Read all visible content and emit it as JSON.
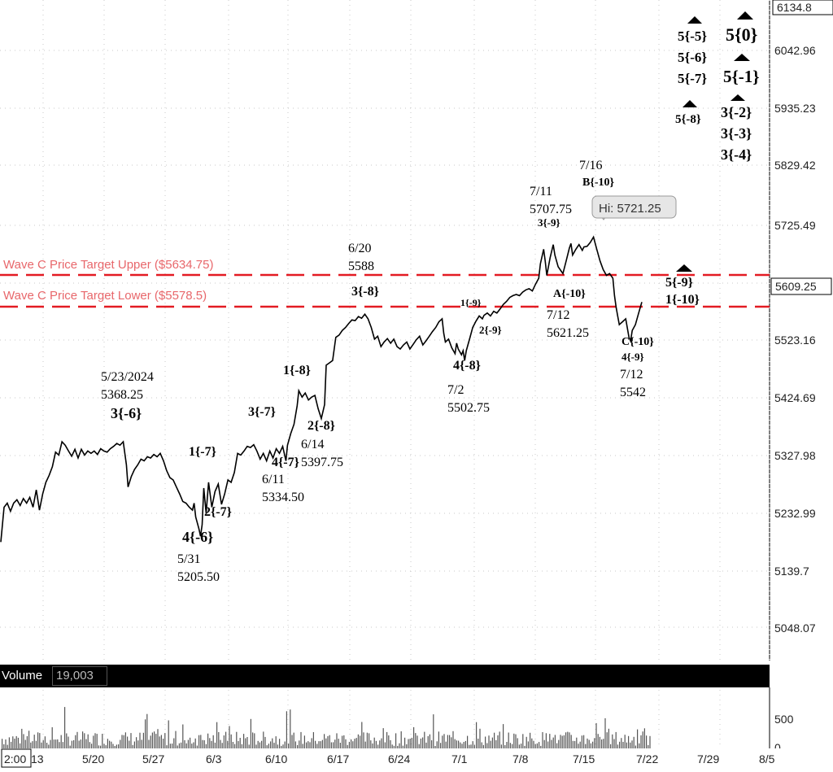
{
  "chart_data": {
    "type": "line",
    "title": "",
    "ylabel": "",
    "xlabel": "",
    "ylim": [
      4990,
      6165
    ],
    "grid": true,
    "y_ticks": [
      "6134.8",
      "6042.96",
      "5935.23",
      "5829.42",
      "5725.49",
      "5523.16",
      "5424.69",
      "5327.98",
      "5232.99",
      "5139.7",
      "5048.07"
    ],
    "current_price_label": "5609.25",
    "hi_label": "Hi: 5721.25",
    "x_ticks": [
      "2:00",
      "13",
      "5/20",
      "5/27",
      "6/3",
      "6/10",
      "6/17",
      "6/24",
      "7/1",
      "7/8",
      "7/15",
      "7/22",
      "7/29",
      "8/5"
    ],
    "series": [
      {
        "values": [
          [
            0,
            5195
          ],
          [
            4,
            5255
          ],
          [
            8,
            5262
          ],
          [
            12,
            5248
          ],
          [
            16,
            5262
          ],
          [
            20,
            5268
          ],
          [
            24,
            5258
          ],
          [
            28,
            5270
          ],
          [
            32,
            5262
          ],
          [
            36,
            5272
          ],
          [
            40,
            5255
          ],
          [
            44,
            5285
          ],
          [
            48,
            5250
          ],
          [
            52,
            5278
          ],
          [
            56,
            5298
          ],
          [
            60,
            5310
          ],
          [
            64,
            5325
          ],
          [
            68,
            5350
          ],
          [
            72,
            5345
          ],
          [
            76,
            5368
          ],
          [
            80,
            5362
          ],
          [
            84,
            5352
          ],
          [
            88,
            5343
          ],
          [
            92,
            5355
          ],
          [
            96,
            5340
          ],
          [
            100,
            5355
          ],
          [
            104,
            5345
          ],
          [
            108,
            5352
          ],
          [
            112,
            5348
          ],
          [
            116,
            5352
          ],
          [
            120,
            5346
          ],
          [
            124,
            5356
          ],
          [
            128,
            5352
          ],
          [
            132,
            5350
          ],
          [
            136,
            5356
          ],
          [
            140,
            5360
          ],
          [
            144,
            5365
          ],
          [
            148,
            5362
          ],
          [
            152,
            5368
          ],
          [
            156,
            5328
          ],
          [
            158,
            5290
          ],
          [
            162,
            5308
          ],
          [
            166,
            5320
          ],
          [
            170,
            5328
          ],
          [
            174,
            5338
          ],
          [
            178,
            5335
          ],
          [
            182,
            5342
          ],
          [
            186,
            5340
          ],
          [
            190,
            5346
          ],
          [
            194,
            5342
          ],
          [
            198,
            5348
          ],
          [
            202,
            5335
          ],
          [
            206,
            5318
          ],
          [
            210,
            5306
          ],
          [
            214,
            5302
          ],
          [
            218,
            5290
          ],
          [
            222,
            5278
          ],
          [
            226,
            5265
          ],
          [
            230,
            5262
          ],
          [
            234,
            5255
          ],
          [
            238,
            5250
          ],
          [
            240,
            5262
          ],
          [
            242,
            5238
          ],
          [
            246,
            5218
          ],
          [
            248,
            5205
          ],
          [
            250,
            5225
          ],
          [
            252,
            5288
          ],
          [
            255,
            5245
          ],
          [
            258,
            5298
          ],
          [
            262,
            5255
          ],
          [
            266,
            5282
          ],
          [
            270,
            5295
          ],
          [
            274,
            5260
          ],
          [
            278,
            5278
          ],
          [
            282,
            5302
          ],
          [
            286,
            5298
          ],
          [
            290,
            5315
          ],
          [
            294,
            5348
          ],
          [
            298,
            5345
          ],
          [
            302,
            5352
          ],
          [
            306,
            5360
          ],
          [
            310,
            5358
          ],
          [
            314,
            5363
          ],
          [
            318,
            5352
          ],
          [
            322,
            5338
          ],
          [
            326,
            5348
          ],
          [
            330,
            5335
          ],
          [
            334,
            5352
          ],
          [
            338,
            5340
          ],
          [
            342,
            5356
          ],
          [
            346,
            5348
          ],
          [
            350,
            5360
          ],
          [
            354,
            5335
          ],
          [
            356,
            5362
          ],
          [
            360,
            5382
          ],
          [
            364,
            5398
          ],
          [
            368,
            5430
          ],
          [
            370,
            5456
          ],
          [
            374,
            5445
          ],
          [
            378,
            5452
          ],
          [
            382,
            5440
          ],
          [
            386,
            5445
          ],
          [
            390,
            5448
          ],
          [
            394,
            5425
          ],
          [
            398,
            5408
          ],
          [
            402,
            5432
          ],
          [
            404,
            5500
          ],
          [
            408,
            5504
          ],
          [
            412,
            5508
          ],
          [
            416,
            5548
          ],
          [
            420,
            5552
          ],
          [
            424,
            5560
          ],
          [
            428,
            5565
          ],
          [
            432,
            5572
          ],
          [
            436,
            5578
          ],
          [
            440,
            5577
          ],
          [
            444,
            5584
          ],
          [
            448,
            5581
          ],
          [
            452,
            5588
          ],
          [
            456,
            5580
          ],
          [
            460,
            5565
          ],
          [
            464,
            5545
          ],
          [
            468,
            5550
          ],
          [
            472,
            5532
          ],
          [
            476,
            5540
          ],
          [
            480,
            5546
          ],
          [
            484,
            5538
          ],
          [
            488,
            5545
          ],
          [
            492,
            5532
          ],
          [
            496,
            5528
          ],
          [
            500,
            5535
          ],
          [
            504,
            5540
          ],
          [
            508,
            5528
          ],
          [
            512,
            5536
          ],
          [
            516,
            5544
          ],
          [
            520,
            5550
          ],
          [
            524,
            5535
          ],
          [
            528,
            5542
          ],
          [
            532,
            5550
          ],
          [
            536,
            5558
          ],
          [
            540,
            5565
          ],
          [
            544,
            5575
          ],
          [
            548,
            5580
          ],
          [
            550,
            5555
          ],
          [
            552,
            5540
          ],
          [
            556,
            5545
          ],
          [
            560,
            5530
          ],
          [
            564,
            5520
          ],
          [
            566,
            5538
          ],
          [
            568,
            5528
          ],
          [
            572,
            5518
          ],
          [
            574,
            5525
          ],
          [
            576,
            5508
          ],
          [
            578,
            5525
          ],
          [
            582,
            5545
          ],
          [
            586,
            5565
          ],
          [
            590,
            5576
          ],
          [
            594,
            5585
          ],
          [
            598,
            5580
          ],
          [
            600,
            5586
          ],
          [
            604,
            5590
          ],
          [
            608,
            5585
          ],
          [
            612,
            5593
          ],
          [
            616,
            5590
          ],
          [
            620,
            5597
          ],
          [
            624,
            5605
          ],
          [
            628,
            5610
          ],
          [
            632,
            5617
          ],
          [
            636,
            5620
          ],
          [
            640,
            5622
          ],
          [
            644,
            5620
          ],
          [
            648,
            5626
          ],
          [
            652,
            5630
          ],
          [
            656,
            5632
          ],
          [
            660,
            5628
          ],
          [
            664,
            5640
          ],
          [
            668,
            5650
          ],
          [
            670,
            5675
          ],
          [
            674,
            5700
          ],
          [
            676,
            5680
          ],
          [
            678,
            5655
          ],
          [
            682,
            5685
          ],
          [
            686,
            5708
          ],
          [
            688,
            5690
          ],
          [
            692,
            5670
          ],
          [
            696,
            5662
          ],
          [
            698,
            5658
          ],
          [
            702,
            5680
          ],
          [
            706,
            5702
          ],
          [
            708,
            5710
          ],
          [
            710,
            5690
          ],
          [
            714,
            5700
          ],
          [
            718,
            5708
          ],
          [
            722,
            5698
          ],
          [
            724,
            5704
          ],
          [
            728,
            5705
          ],
          [
            732,
            5712
          ],
          [
            736,
            5721
          ],
          [
            740,
            5700
          ],
          [
            744,
            5680
          ],
          [
            748,
            5665
          ],
          [
            752,
            5655
          ],
          [
            756,
            5658
          ],
          [
            760,
            5650
          ],
          [
            762,
            5620
          ],
          [
            764,
            5600
          ],
          [
            766,
            5585
          ],
          [
            768,
            5570
          ],
          [
            772,
            5575
          ],
          [
            776,
            5580
          ],
          [
            780,
            5548
          ],
          [
            782,
            5542
          ],
          [
            784,
            5560
          ],
          [
            788,
            5570
          ],
          [
            792,
            5590
          ],
          [
            796,
            5609
          ]
        ]
      }
    ],
    "volume": {
      "label": "Volume",
      "value": "19,003",
      "scale_ticks": [
        "500",
        "0"
      ]
    },
    "annotations": {
      "wave_c_upper": {
        "label": "Wave C Price Target Upper ($5634.75)",
        "price": 5634.75
      },
      "wave_c_lower": {
        "label": "Wave C Price Target Lower ($5578.5)",
        "price": 5578.5
      },
      "a523_date": "5/23/2024",
      "a523_price": "5368.25",
      "a523_wave": "3{-6}",
      "a531_wave": "4{-6}",
      "a531_date": "5/31",
      "a531_price": "5205.50",
      "a_1m7": "1{-7}",
      "a_2m7": "2{-7}",
      "a_3m7": "3{-7}",
      "a_4m7": "4{-7}",
      "a611_date": "6/11",
      "a611_price": "5334.50",
      "a_1m8": "1{-8}",
      "a_2m8": "2{-8}",
      "a614_date": "6/14",
      "a614_price": "5397.75",
      "a620_date": "6/20",
      "a620_price": "5588",
      "a620_wave": "3{-8}",
      "a_1m9": "1{-9}",
      "a_2m9": "2{-9}",
      "a_4m8": "4{-8}",
      "a72_date": "7/2",
      "a72_price": "5502.75",
      "a711_date": "7/11",
      "a711_price": "5707.75",
      "a711_wave": "3{-9}",
      "a716_date": "7/16",
      "a716_wave": "B{-10}",
      "a_Am10": "A{-10}",
      "a712_date": "7/12",
      "a712_price": "5621.25",
      "a_Cm10": "C{-10}",
      "a_4m9": "4{-9}",
      "a712b_date": "7/12",
      "a712b_price": "5542",
      "a_5m9": "5{-9}",
      "a_1m10": "1{-10}",
      "a_5m5": "5{-5}",
      "a_5m6": "5{-6}",
      "a_5m7": "5{-7}",
      "a_5m8": "5{-8}",
      "a_50": "5{0}",
      "a_5m1": "5{-1}",
      "a_3m2": "3{-2}",
      "a_3m3": "3{-3}",
      "a_3m4": "3{-4}"
    }
  }
}
